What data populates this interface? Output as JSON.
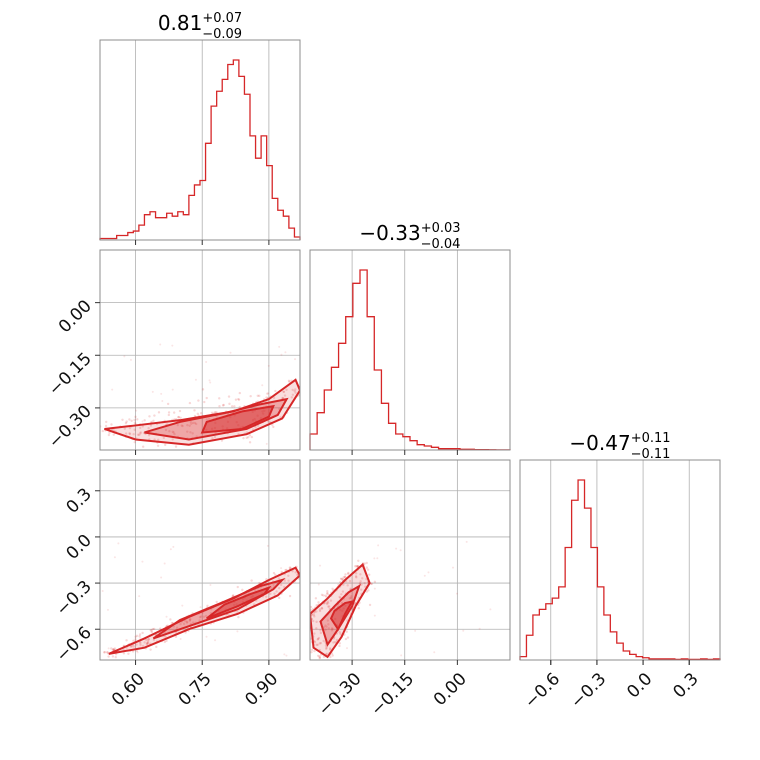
{
  "chart_data": {
    "type": "corner",
    "color": "#d62728",
    "parameters": [
      {
        "title_median": "0.81",
        "title_plus": "+0.07",
        "title_minus": "−0.09",
        "range": [
          0.52,
          0.97
        ],
        "ticks": [
          0.6,
          0.75,
          0.9
        ],
        "tick_labels": [
          "0.60",
          "0.75",
          "0.90"
        ],
        "hist": [
          1,
          1,
          1,
          3,
          3,
          5,
          6,
          10,
          17,
          19,
          15,
          15,
          18,
          16,
          19,
          17,
          30,
          37,
          40,
          65,
          90,
          100,
          108,
          118,
          121,
          110,
          98,
          70,
          55,
          70,
          50,
          28,
          20,
          16,
          8,
          2
        ]
      },
      {
        "title_median": "−0.33",
        "title_plus": "+0.03",
        "title_minus": "−0.04",
        "range": [
          -0.42,
          0.15
        ],
        "ticks": [
          -0.3,
          -0.15,
          0.0
        ],
        "tick_labels": [
          "−0.30",
          "−0.15",
          "0.00"
        ],
        "hist": [
          12,
          28,
          45,
          62,
          80,
          100,
          125,
          135,
          100,
          60,
          35,
          20,
          12,
          10,
          7,
          4,
          3,
          2,
          1,
          1,
          1,
          0.5,
          0.5,
          0.3,
          0.3,
          0.2,
          0.1,
          0.1
        ]
      },
      {
        "title_median": "−0.47",
        "title_plus": "+0.11",
        "title_minus": "−0.11",
        "range": [
          -0.8,
          0.5
        ],
        "ticks": [
          -0.6,
          -0.3,
          0.0,
          0.3
        ],
        "tick_labels": [
          "−0.6",
          "−0.3",
          "0.0",
          "0.3"
        ],
        "hist": [
          3,
          22,
          40,
          45,
          50,
          55,
          65,
          100,
          142,
          160,
          135,
          100,
          65,
          40,
          25,
          15,
          8,
          5,
          3,
          2,
          1,
          1,
          1,
          1,
          0.5,
          1,
          0.5,
          0.5,
          1,
          0.5,
          1
        ]
      }
    ],
    "pair_panels": [
      {
        "x_param": 0,
        "y_param": 1,
        "axis_y_ticks": [
          0.0,
          -0.15,
          -0.3
        ],
        "axis_y_tick_labels": [
          "0.00",
          "−0.15",
          "−0.30"
        ],
        "contours": [
          {
            "level": "outer",
            "points": [
              [
                0.53,
                -0.36
              ],
              [
                0.6,
                -0.39
              ],
              [
                0.72,
                -0.405
              ],
              [
                0.85,
                -0.375
              ],
              [
                0.93,
                -0.33
              ],
              [
                0.97,
                -0.25
              ],
              [
                0.96,
                -0.22
              ],
              [
                0.9,
                -0.275
              ],
              [
                0.82,
                -0.31
              ],
              [
                0.7,
                -0.335
              ],
              [
                0.6,
                -0.35
              ],
              [
                0.53,
                -0.36
              ]
            ]
          },
          {
            "level": "mid",
            "points": [
              [
                0.62,
                -0.37
              ],
              [
                0.72,
                -0.39
              ],
              [
                0.85,
                -0.36
              ],
              [
                0.92,
                -0.32
              ],
              [
                0.94,
                -0.275
              ],
              [
                0.88,
                -0.29
              ],
              [
                0.8,
                -0.315
              ],
              [
                0.7,
                -0.34
              ],
              [
                0.62,
                -0.37
              ]
            ]
          },
          {
            "level": "inner",
            "points": [
              [
                0.75,
                -0.37
              ],
              [
                0.84,
                -0.36
              ],
              [
                0.9,
                -0.325
              ],
              [
                0.91,
                -0.295
              ],
              [
                0.84,
                -0.31
              ],
              [
                0.76,
                -0.34
              ],
              [
                0.75,
                -0.37
              ]
            ]
          }
        ],
        "scatter_range": {
          "x": [
            0.54,
            0.97
          ],
          "y_center_slope": 0.35,
          "y_spread": 0.03
        }
      },
      {
        "x_param": 0,
        "y_param": 2,
        "axis_y_ticks": [
          0.3,
          0.0,
          -0.3,
          -0.6
        ],
        "axis_y_tick_labels": [
          "0.3",
          "0.0",
          "−0.3",
          "−0.6"
        ],
        "contours": [
          {
            "level": "outer",
            "points": [
              [
                0.54,
                -0.76
              ],
              [
                0.62,
                -0.72
              ],
              [
                0.72,
                -0.6
              ],
              [
                0.83,
                -0.5
              ],
              [
                0.92,
                -0.38
              ],
              [
                0.97,
                -0.25
              ],
              [
                0.96,
                -0.2
              ],
              [
                0.9,
                -0.28
              ],
              [
                0.82,
                -0.4
              ],
              [
                0.72,
                -0.52
              ],
              [
                0.62,
                -0.66
              ],
              [
                0.54,
                -0.76
              ]
            ]
          },
          {
            "level": "mid",
            "points": [
              [
                0.64,
                -0.66
              ],
              [
                0.72,
                -0.58
              ],
              [
                0.83,
                -0.47
              ],
              [
                0.91,
                -0.34
              ],
              [
                0.93,
                -0.28
              ],
              [
                0.88,
                -0.32
              ],
              [
                0.8,
                -0.42
              ],
              [
                0.7,
                -0.54
              ],
              [
                0.64,
                -0.66
              ]
            ]
          },
          {
            "level": "inner",
            "points": [
              [
                0.76,
                -0.53
              ],
              [
                0.83,
                -0.45
              ],
              [
                0.89,
                -0.37
              ],
              [
                0.9,
                -0.33
              ],
              [
                0.86,
                -0.37
              ],
              [
                0.8,
                -0.44
              ],
              [
                0.76,
                -0.53
              ]
            ]
          }
        ],
        "scatter_range": {
          "x": [
            0.52,
            0.97
          ]
        }
      },
      {
        "x_param": 1,
        "y_param": 2,
        "contours": [
          {
            "level": "outer",
            "points": [
              [
                -0.42,
                -0.5
              ],
              [
                -0.41,
                -0.72
              ],
              [
                -0.37,
                -0.78
              ],
              [
                -0.33,
                -0.65
              ],
              [
                -0.29,
                -0.45
              ],
              [
                -0.25,
                -0.3
              ],
              [
                -0.27,
                -0.18
              ],
              [
                -0.32,
                -0.28
              ],
              [
                -0.37,
                -0.4
              ],
              [
                -0.42,
                -0.5
              ]
            ]
          },
          {
            "level": "mid",
            "points": [
              [
                -0.39,
                -0.55
              ],
              [
                -0.37,
                -0.7
              ],
              [
                -0.34,
                -0.6
              ],
              [
                -0.3,
                -0.45
              ],
              [
                -0.28,
                -0.32
              ],
              [
                -0.31,
                -0.36
              ],
              [
                -0.35,
                -0.45
              ],
              [
                -0.39,
                -0.55
              ]
            ]
          },
          {
            "level": "inner",
            "points": [
              [
                -0.36,
                -0.53
              ],
              [
                -0.34,
                -0.6
              ],
              [
                -0.32,
                -0.5
              ],
              [
                -0.3,
                -0.42
              ],
              [
                -0.32,
                -0.43
              ],
              [
                -0.35,
                -0.48
              ],
              [
                -0.36,
                -0.53
              ]
            ]
          }
        ],
        "scatter_range": {
          "x": [
            -0.42,
            0.12
          ]
        }
      }
    ]
  }
}
